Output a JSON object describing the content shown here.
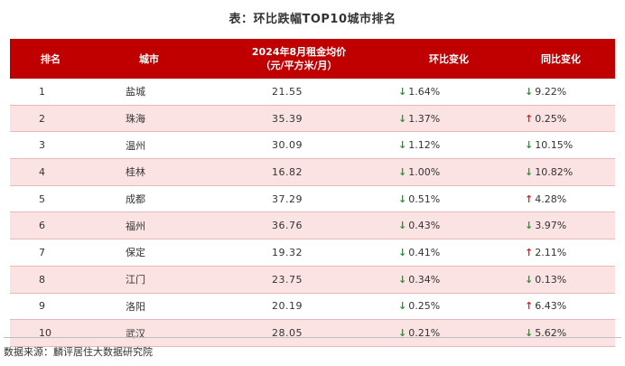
{
  "caption": "表：环比跌幅TOP10城市排名",
  "headers": {
    "rank": "排名",
    "city": "城市",
    "rent_line1": "2024年8月租金均价",
    "rent_line2": "（元/平方米/月）",
    "mom": "环比变化",
    "yoy": "同比变化"
  },
  "colors": {
    "header_bg": "#c00000",
    "stripe": "#fbe3e3",
    "down": "#1a9b2e",
    "up": "#e01b1b"
  },
  "icons": {
    "down": "arrow-down-icon",
    "up": "arrow-up-icon"
  },
  "rows": [
    {
      "rank": "1",
      "city": "盐城",
      "rent": "21.55",
      "mom": "1.64%",
      "mom_dir": "down",
      "yoy": "9.22%",
      "yoy_dir": "down"
    },
    {
      "rank": "2",
      "city": "珠海",
      "rent": "35.39",
      "mom": "1.37%",
      "mom_dir": "down",
      "yoy": "0.25%",
      "yoy_dir": "up"
    },
    {
      "rank": "3",
      "city": "温州",
      "rent": "30.09",
      "mom": "1.12%",
      "mom_dir": "down",
      "yoy": "10.15%",
      "yoy_dir": "down"
    },
    {
      "rank": "4",
      "city": "桂林",
      "rent": "16.82",
      "mom": "1.00%",
      "mom_dir": "down",
      "yoy": "10.82%",
      "yoy_dir": "down"
    },
    {
      "rank": "5",
      "city": "成都",
      "rent": "37.29",
      "mom": "0.51%",
      "mom_dir": "down",
      "yoy": "4.28%",
      "yoy_dir": "up"
    },
    {
      "rank": "6",
      "city": "福州",
      "rent": "36.76",
      "mom": "0.43%",
      "mom_dir": "down",
      "yoy": "3.97%",
      "yoy_dir": "down"
    },
    {
      "rank": "7",
      "city": "保定",
      "rent": "19.32",
      "mom": "0.41%",
      "mom_dir": "down",
      "yoy": "2.11%",
      "yoy_dir": "up"
    },
    {
      "rank": "8",
      "city": "江门",
      "rent": "23.75",
      "mom": "0.34%",
      "mom_dir": "down",
      "yoy": "0.13%",
      "yoy_dir": "down"
    },
    {
      "rank": "9",
      "city": "洛阳",
      "rent": "20.19",
      "mom": "0.25%",
      "mom_dir": "down",
      "yoy": "6.43%",
      "yoy_dir": "up"
    },
    {
      "rank": "10",
      "city": "武汉",
      "rent": "28.05",
      "mom": "0.21%",
      "mom_dir": "down",
      "yoy": "5.62%",
      "yoy_dir": "down"
    }
  ],
  "source": "数据来源：麟评居住大数据研究院"
}
